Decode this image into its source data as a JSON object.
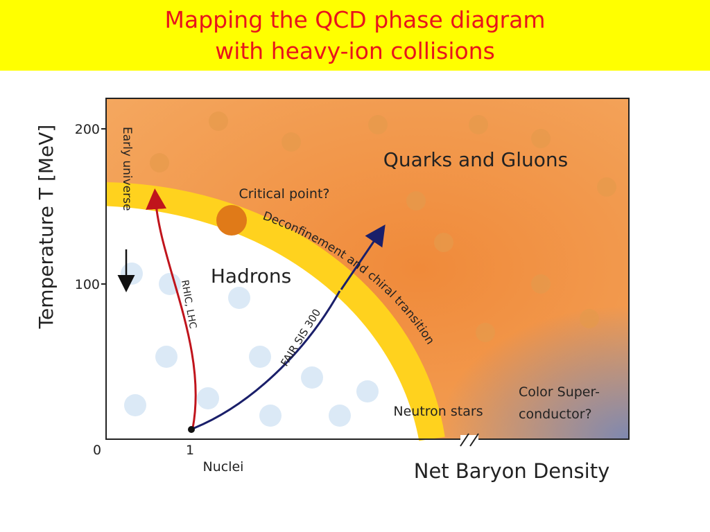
{
  "header": {
    "title_lines": [
      "Mapping the QCD  phase diagram",
      "with heavy-ion collisions"
    ]
  },
  "diagram": {
    "y_axis_label": "Temperature T [MeV]",
    "y_ticks": [
      "200",
      "100",
      "0"
    ],
    "x_ticks": [
      "1"
    ],
    "x_tick_caption": "Nuclei",
    "x_axis_label": "Net Baryon Density",
    "regions": {
      "qgp": "Quarks and Gluons",
      "hadrons": "Hadrons",
      "color_sc": [
        "Color Super-",
        "conductor?"
      ],
      "neutron_stars": "Neutron stars"
    },
    "critical_point": "Critical point?",
    "transition": "Deconfinement and chiral transition",
    "paths": {
      "early_universe": "Early universe",
      "rhic_lhc": "RHIC, LHC",
      "fair": "FAIR SIS 300"
    }
  }
}
